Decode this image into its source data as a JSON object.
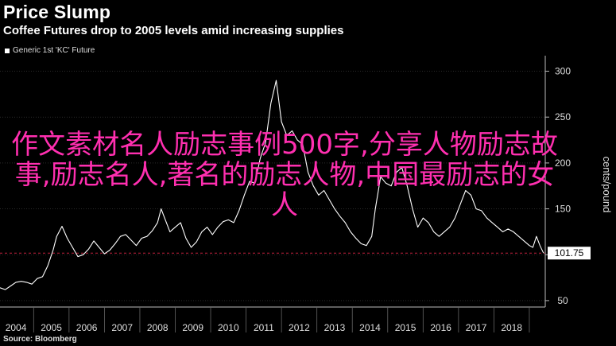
{
  "header": {
    "title": "Price Slump",
    "subtitle": "Coffee Futures drop to 2005 levels amid increasing supplies"
  },
  "legend": {
    "series_label": "Generic 1st 'KC' Future"
  },
  "footer": {
    "source": "Source: Bloomberg"
  },
  "overlay": {
    "watermark_text": "作文素材名人励志事例500字,分享人物励志故事,励志名人,著名的励志人物,中国最励志的女人"
  },
  "colors": {
    "background": "#000000",
    "line": "#ffffff",
    "reference_line": "#c0203c",
    "watermark": "#ff2fb0"
  },
  "chart_data": {
    "type": "line",
    "title": "Price Slump",
    "subtitle": "Coffee Futures drop to 2005 levels amid increasing supplies",
    "ylabel": "cents/pound",
    "ylim": [
      43,
      310
    ],
    "xlim": [
      2003.55,
      2018.95
    ],
    "x_ticks": [
      "2004",
      "2005",
      "2006",
      "2007",
      "2008",
      "2009",
      "2010",
      "2011",
      "2012",
      "2013",
      "2014",
      "2015",
      "2016",
      "2017",
      "2018"
    ],
    "y_ticks": [
      50,
      100,
      150,
      200,
      250,
      300
    ],
    "last_value": 101.75,
    "reference_line": 101.75,
    "series": [
      {
        "name": "Generic 1st 'KC' Future",
        "x": [
          2003.55,
          2003.7,
          2003.85,
          2004.0,
          2004.15,
          2004.3,
          2004.45,
          2004.6,
          2004.75,
          2004.9,
          2005.05,
          2005.15,
          2005.3,
          2005.45,
          2005.6,
          2005.75,
          2005.9,
          2006.05,
          2006.2,
          2006.35,
          2006.5,
          2006.65,
          2006.8,
          2006.95,
          2007.1,
          2007.25,
          2007.4,
          2007.55,
          2007.7,
          2007.85,
          2008.0,
          2008.1,
          2008.2,
          2008.35,
          2008.5,
          2008.65,
          2008.8,
          2008.95,
          2009.1,
          2009.25,
          2009.4,
          2009.55,
          2009.7,
          2009.85,
          2010.0,
          2010.15,
          2010.3,
          2010.45,
          2010.6,
          2010.75,
          2010.9,
          2011.05,
          2011.2,
          2011.35,
          2011.5,
          2011.65,
          2011.8,
          2011.95,
          2012.1,
          2012.25,
          2012.4,
          2012.55,
          2012.7,
          2012.85,
          2013.0,
          2013.15,
          2013.3,
          2013.45,
          2013.6,
          2013.75,
          2013.9,
          2014.05,
          2014.15,
          2014.3,
          2014.45,
          2014.6,
          2014.75,
          2014.9,
          2015.05,
          2015.2,
          2015.35,
          2015.5,
          2015.65,
          2015.8,
          2015.95,
          2016.1,
          2016.25,
          2016.4,
          2016.55,
          2016.7,
          2016.85,
          2017.0,
          2017.15,
          2017.3,
          2017.45,
          2017.6,
          2017.75,
          2017.9,
          2018.05,
          2018.2,
          2018.35,
          2018.5,
          2018.6,
          2018.7,
          2018.8,
          2018.9
        ],
        "y": [
          64,
          62,
          66,
          70,
          71,
          70,
          68,
          74,
          76,
          88,
          105,
          120,
          131,
          118,
          108,
          98,
          100,
          106,
          115,
          108,
          101,
          105,
          112,
          120,
          122,
          116,
          110,
          118,
          120,
          126,
          135,
          150,
          140,
          125,
          130,
          135,
          118,
          108,
          114,
          125,
          130,
          122,
          130,
          136,
          138,
          135,
          148,
          165,
          180,
          178,
          205,
          222,
          265,
          290,
          245,
          230,
          235,
          225,
          220,
          190,
          175,
          165,
          170,
          160,
          150,
          142,
          135,
          125,
          118,
          112,
          110,
          120,
          150,
          185,
          178,
          175,
          190,
          195,
          175,
          150,
          130,
          140,
          135,
          125,
          120,
          125,
          130,
          140,
          155,
          170,
          165,
          150,
          148,
          140,
          135,
          130,
          125,
          128,
          125,
          120,
          115,
          110,
          108,
          120,
          110,
          101.75
        ]
      }
    ]
  }
}
